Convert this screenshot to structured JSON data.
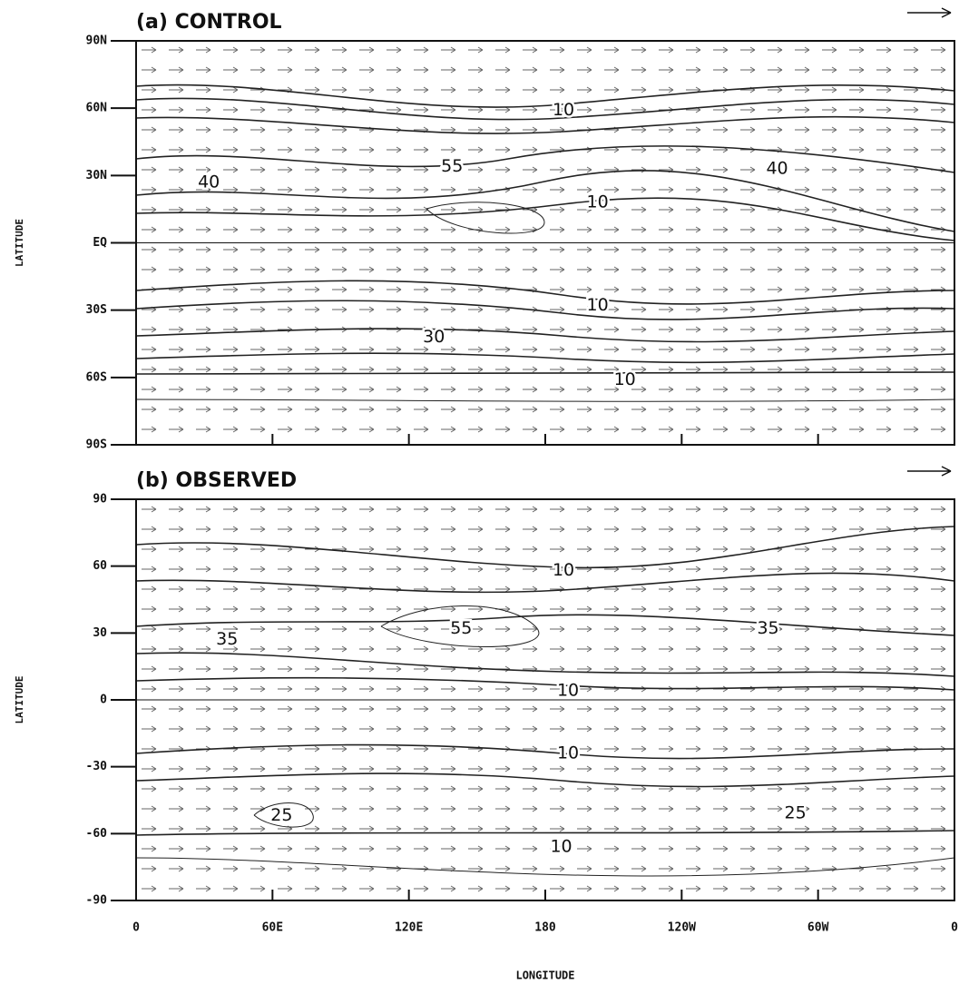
{
  "chart_data": [
    {
      "type": "vector-contour",
      "title": "(a) CONTROL",
      "y_label": "LATITUDE",
      "xlim": [
        0,
        360
      ],
      "ylim": [
        -90,
        90
      ],
      "yticks": [
        {
          "value": 90,
          "label": "90N"
        },
        {
          "value": 60,
          "label": "60N"
        },
        {
          "value": 30,
          "label": "30N"
        },
        {
          "value": 0,
          "label": "EQ"
        },
        {
          "value": -30,
          "label": "30S"
        },
        {
          "value": -60,
          "label": "60S"
        },
        {
          "value": -90,
          "label": "90S"
        }
      ],
      "annotations": [
        {
          "text": "10",
          "x": 188,
          "y": 59
        },
        {
          "text": "40",
          "x": 32,
          "y": 27
        },
        {
          "text": "55",
          "x": 139,
          "y": 34
        },
        {
          "text": "10",
          "x": 203,
          "y": 18
        },
        {
          "text": "40",
          "x": 282,
          "y": 33
        },
        {
          "text": "10",
          "x": 203,
          "y": -28
        },
        {
          "text": "30",
          "x": 131,
          "y": -42
        },
        {
          "text": "10",
          "x": 215,
          "y": -61
        }
      ]
    },
    {
      "type": "vector-contour",
      "title": "(b) OBSERVED",
      "x_label": "LONGITUDE",
      "y_label": "LATITUDE",
      "xlim": [
        0,
        360
      ],
      "ylim": [
        -90,
        90
      ],
      "xticks": [
        0,
        {
          "value": 60,
          "label": "60E"
        },
        {
          "value": 120,
          "label": "120E"
        },
        180,
        {
          "value": 240,
          "label": "120W"
        },
        {
          "value": 300,
          "label": "60W"
        },
        {
          "value": 360,
          "label": "0"
        }
      ],
      "yticks": [
        90,
        60,
        30,
        0,
        -30,
        -60,
        -90
      ],
      "annotations": [
        {
          "text": "10",
          "x": 188,
          "y": 58
        },
        {
          "text": "35",
          "x": 40,
          "y": 27
        },
        {
          "text": "55",
          "x": 143,
          "y": 32
        },
        {
          "text": "10",
          "x": 190,
          "y": 4
        },
        {
          "text": "35",
          "x": 278,
          "y": 32
        },
        {
          "text": "10",
          "x": 190,
          "y": -24
        },
        {
          "text": "25",
          "x": 64,
          "y": -52
        },
        {
          "text": "25",
          "x": 290,
          "y": -51
        },
        {
          "text": "10",
          "x": 187,
          "y": -66
        }
      ]
    }
  ]
}
